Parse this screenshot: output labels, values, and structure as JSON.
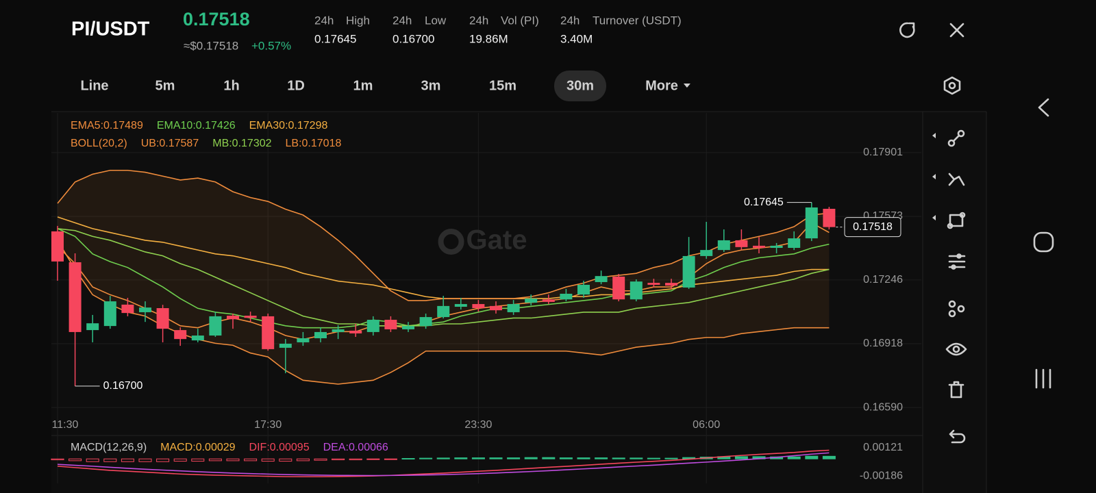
{
  "header": {
    "pair": "PI/USDT",
    "price": "0.17518",
    "approx": "≈$0.17518",
    "change": "+0.57%",
    "stats": [
      {
        "period": "24h",
        "label": "High",
        "value": "0.17645"
      },
      {
        "period": "24h",
        "label": "Low",
        "value": "0.16700"
      },
      {
        "period": "24h",
        "label": "Vol (PI)",
        "value": "19.86M"
      },
      {
        "period": "24h",
        "label": "Turnover (USDT)",
        "value": "3.40M"
      }
    ]
  },
  "timeframes": {
    "items": [
      "Line",
      "5m",
      "1h",
      "1D",
      "1m",
      "3m",
      "15m",
      "30m",
      "More"
    ],
    "active": 7
  },
  "chart_data": [
    {
      "type": "candlestick",
      "watermark": "Gate",
      "indicator_label": "BOLL(20,2)",
      "up_color": "#2ebd85",
      "down_color": "#f6465d",
      "grid": true,
      "high_label": "0.17645",
      "low_label": "0.16700",
      "last_price_label": "0.17518",
      "categories": [
        "11:30",
        null,
        null,
        null,
        null,
        null,
        null,
        null,
        null,
        null,
        null,
        null,
        "17:30",
        null,
        null,
        null,
        null,
        null,
        null,
        null,
        null,
        null,
        null,
        null,
        "23:30",
        null,
        null,
        null,
        null,
        null,
        null,
        null,
        null,
        null,
        null,
        null,
        null,
        "06:00",
        null,
        null,
        null,
        null,
        null,
        null,
        null
      ],
      "open": [
        0.17496,
        0.17337,
        0.16988,
        0.17009,
        0.17119,
        0.1708,
        0.17101,
        0.16988,
        0.16935,
        0.1696,
        0.17062,
        0.17062,
        0.17059,
        0.16897,
        0.16925,
        0.16946,
        0.16978,
        0.16985,
        0.16978,
        0.17041,
        0.16992,
        0.17009,
        0.17055,
        0.17108,
        0.17122,
        0.17112,
        0.1708,
        0.17129,
        0.17146,
        0.17146,
        0.17171,
        0.17235,
        0.17263,
        0.17146,
        0.17231,
        0.17231,
        0.17207,
        0.17369,
        0.174,
        0.1745,
        0.17422,
        0.17411,
        0.17411,
        0.1746,
        0.17612
      ],
      "high": [
        0.17524,
        0.17383,
        0.17066,
        0.17164,
        0.17154,
        0.17136,
        0.17118,
        0.17002,
        0.16995,
        0.17083,
        0.17073,
        0.17083,
        0.17073,
        0.16942,
        0.16978,
        0.17002,
        0.17013,
        0.1702,
        0.17059,
        0.17059,
        0.1703,
        0.17073,
        0.17164,
        0.17154,
        0.17143,
        0.17136,
        0.17143,
        0.17171,
        0.17171,
        0.172,
        0.17242,
        0.17294,
        0.17277,
        0.17249,
        0.17252,
        0.17252,
        0.17467,
        0.17545,
        0.17506,
        0.17506,
        0.17467,
        0.17436,
        0.17496,
        0.17645,
        0.17622
      ],
      "low": [
        0.17242,
        0.167,
        0.16925,
        0.16995,
        0.17059,
        0.1703,
        0.16925,
        0.16907,
        0.16925,
        0.16953,
        0.16995,
        0.1703,
        0.16882,
        0.16766,
        0.16907,
        0.16925,
        0.16942,
        0.16953,
        0.1696,
        0.16978,
        0.16978,
        0.16995,
        0.17048,
        0.17094,
        0.17083,
        0.17073,
        0.17066,
        0.17115,
        0.17122,
        0.17136,
        0.17154,
        0.17224,
        0.17136,
        0.17136,
        0.17207,
        0.172,
        0.172,
        0.17355,
        0.1739,
        0.174,
        0.17383,
        0.17383,
        0.174,
        0.17446,
        0.17506
      ],
      "close": [
        0.17341,
        0.16978,
        0.17023,
        0.17136,
        0.17076,
        0.17104,
        0.16995,
        0.16942,
        0.1696,
        0.17059,
        0.17044,
        0.17051,
        0.1689,
        0.16918,
        0.16946,
        0.16978,
        0.16992,
        0.16971,
        0.17041,
        0.16992,
        0.17009,
        0.17055,
        0.17112,
        0.17122,
        0.17101,
        0.1709,
        0.17122,
        0.1715,
        0.17133,
        0.17175,
        0.17221,
        0.17266,
        0.17146,
        0.17238,
        0.17221,
        0.17217,
        0.17369,
        0.174,
        0.1745,
        0.17415,
        0.17411,
        0.17422,
        0.1746,
        0.17619,
        0.17518
      ],
      "ylim": [
        0.16555,
        0.18105
      ],
      "yticks": [
        0.17901,
        0.17573,
        0.17246,
        0.16918,
        {
          "value": 0.1659,
          "label": "0.16590"
        }
      ],
      "series": [
        {
          "name": "EMA5:0.17489",
          "color": "#f08c3c",
          "values": [
            0.1742,
            0.1733,
            0.1721,
            0.1717,
            0.1714,
            0.171,
            0.1706,
            0.1701,
            0.17,
            0.1703,
            0.1705,
            0.1703,
            0.17,
            0.1696,
            0.1694,
            0.1696,
            0.1698,
            0.1698,
            0.1701,
            0.1701,
            0.17,
            0.1703,
            0.1706,
            0.1708,
            0.171,
            0.1711,
            0.1712,
            0.1713,
            0.1714,
            0.1715,
            0.1718,
            0.1721,
            0.1719,
            0.1719,
            0.1721,
            0.1721,
            0.1726,
            0.1733,
            0.1738,
            0.174,
            0.1741,
            0.1742,
            0.1744,
            0.1754,
            0.1749
          ]
        },
        {
          "name": "EMA10:0.17426",
          "color": "#6fcf4f",
          "values": [
            0.1751,
            0.1747,
            0.1738,
            0.1734,
            0.1731,
            0.1726,
            0.1721,
            0.1715,
            0.171,
            0.1708,
            0.1707,
            0.1705,
            0.1703,
            0.1701,
            0.17,
            0.17,
            0.17,
            0.1701,
            0.1704,
            0.1703,
            0.1701,
            0.1702,
            0.1703,
            0.1706,
            0.1708,
            0.171,
            0.171,
            0.1711,
            0.1712,
            0.1713,
            0.1714,
            0.1715,
            0.1717,
            0.1717,
            0.1718,
            0.1719,
            0.1724,
            0.1727,
            0.1731,
            0.1734,
            0.1736,
            0.1737,
            0.1738,
            0.1741,
            0.1743
          ]
        },
        {
          "name": "EMA30:0.17298",
          "color": "#f5b041",
          "values": [
            0.1757,
            0.1754,
            0.1751,
            0.1749,
            0.1747,
            0.1745,
            0.1744,
            0.1742,
            0.174,
            0.1738,
            0.1737,
            0.1735,
            0.1733,
            0.1731,
            0.1728,
            0.1726,
            0.1724,
            0.1723,
            0.1722,
            0.172,
            0.1718,
            0.1716,
            0.1715,
            0.1715,
            0.1715,
            0.1715,
            0.1715,
            0.1715,
            0.1715,
            0.1716,
            0.1716,
            0.1717,
            0.1717,
            0.1718,
            0.1719,
            0.172,
            0.1722,
            0.1723,
            0.1724,
            0.1725,
            0.1726,
            0.1727,
            0.1729,
            0.173,
            0.173
          ]
        },
        {
          "name": "UB:0.17587",
          "color": "#f08c3c",
          "values": [
            0.1764,
            0.1775,
            0.1779,
            0.1781,
            0.1781,
            0.178,
            0.1778,
            0.1776,
            0.1777,
            0.1775,
            0.177,
            0.1767,
            0.1765,
            0.1761,
            0.1758,
            0.1752,
            0.1745,
            0.1737,
            0.1728,
            0.1719,
            0.1714,
            0.1714,
            0.1715,
            0.1715,
            0.1715,
            0.1715,
            0.1715,
            0.1716,
            0.1718,
            0.1721,
            0.1723,
            0.1726,
            0.1727,
            0.1728,
            0.1731,
            0.1733,
            0.1737,
            0.1739,
            0.1743,
            0.1745,
            0.1747,
            0.1749,
            0.1752,
            0.1758,
            0.1759
          ]
        },
        {
          "name": "MB:0.17302",
          "color": "#8fd14f",
          "values": [
            0.1751,
            0.175,
            0.1747,
            0.1745,
            0.1742,
            0.1739,
            0.1737,
            0.1733,
            0.173,
            0.1726,
            0.1722,
            0.1718,
            0.1714,
            0.171,
            0.1706,
            0.1704,
            0.1702,
            0.1702,
            0.1701,
            0.1701,
            0.1701,
            0.1701,
            0.1702,
            0.1702,
            0.1703,
            0.1704,
            0.1705,
            0.1705,
            0.1706,
            0.1707,
            0.1708,
            0.1708,
            0.1708,
            0.171,
            0.1711,
            0.1712,
            0.1713,
            0.1715,
            0.1717,
            0.1719,
            0.1721,
            0.1723,
            0.1725,
            0.1728,
            0.173
          ]
        },
        {
          "name": "LB:0.17018",
          "color": "#f08c3c",
          "values": [
            0.1745,
            0.173,
            0.1717,
            0.1712,
            0.1708,
            0.1706,
            0.1701,
            0.1697,
            0.1694,
            0.1692,
            0.1691,
            0.1687,
            0.1685,
            0.1678,
            0.1673,
            0.1672,
            0.1671,
            0.1672,
            0.1673,
            0.1677,
            0.1682,
            0.1688,
            0.1688,
            0.1688,
            0.1688,
            0.1688,
            0.1688,
            0.1688,
            0.1688,
            0.1688,
            0.1687,
            0.1686,
            0.1688,
            0.169,
            0.1691,
            0.1692,
            0.1694,
            0.1695,
            0.1695,
            0.1697,
            0.1698,
            0.1699,
            0.17,
            0.17,
            0.17
          ]
        }
      ]
    },
    {
      "type": "macd",
      "title": "MACD(12,26,9)",
      "up_color": "#2ebd85",
      "down_color": "#f6465d",
      "ylim": [
        -0.00268,
        0.00226
      ],
      "yticks": [
        0.00121,
        -0.00186
      ],
      "series": [
        {
          "name": "MACD:0.00029",
          "color": "#f5b041",
          "values": [
            -0.0001,
            -0.0002,
            -0.0003,
            -0.0003,
            -0.0003,
            -0.0003,
            -0.0003,
            -0.00025,
            -0.00025,
            -0.0002,
            -0.0002,
            -0.0002,
            -0.00025,
            -0.00025,
            -0.0002,
            -0.00015,
            -0.0001,
            -0.0001,
            -5e-05,
            -5e-05,
            5e-05,
            8e-05,
            0.0001,
            0.00012,
            0.00012,
            0.00012,
            0.00012,
            0.00015,
            0.00015,
            0.00012,
            0.00012,
            0.00012,
            0.0001,
            0.0001,
            8e-05,
            8e-05,
            0.00015,
            0.0002,
            0.00025,
            0.00025,
            0.00025,
            0.00022,
            0.00022,
            0.0003,
            0.00029
          ]
        },
        {
          "name": "DIF:0.00095",
          "color": "#f6465d",
          "values": [
            -0.0008,
            -0.00095,
            -0.0011,
            -0.00125,
            -0.00135,
            -0.00145,
            -0.00155,
            -0.00165,
            -0.00172,
            -0.00178,
            -0.00182,
            -0.00186,
            -0.0019,
            -0.00194,
            -0.00195,
            -0.00195,
            -0.00193,
            -0.0019,
            -0.00186,
            -0.0018,
            -0.00172,
            -0.00164,
            -0.00155,
            -0.00145,
            -0.00135,
            -0.00125,
            -0.00114,
            -0.00103,
            -0.00092,
            -0.00081,
            -0.0007,
            -0.00058,
            -0.00047,
            -0.00036,
            -0.00026,
            -0.00016,
            -4e-05,
            0.0001,
            0.00025,
            0.00038,
            0.0005,
            0.0006,
            0.0007,
            0.00085,
            0.00095
          ]
        },
        {
          "name": "DEA:0.00066",
          "color": "#c04de0",
          "values": [
            -0.0006,
            -0.0007,
            -0.0008,
            -0.00092,
            -0.00103,
            -0.00113,
            -0.00122,
            -0.00131,
            -0.0014,
            -0.00148,
            -0.00155,
            -0.00161,
            -0.00166,
            -0.00171,
            -0.00175,
            -0.00178,
            -0.0018,
            -0.00181,
            -0.00182,
            -0.00181,
            -0.00179,
            -0.00176,
            -0.00172,
            -0.00167,
            -0.00161,
            -0.00154,
            -0.00146,
            -0.00138,
            -0.00129,
            -0.00119,
            -0.00109,
            -0.00099,
            -0.00088,
            -0.00078,
            -0.00068,
            -0.00057,
            -0.00046,
            -0.00035,
            -0.00023,
            -0.00011,
            2e-05,
            0.00018,
            0.00035,
            0.00052,
            0.00066
          ]
        }
      ]
    }
  ]
}
